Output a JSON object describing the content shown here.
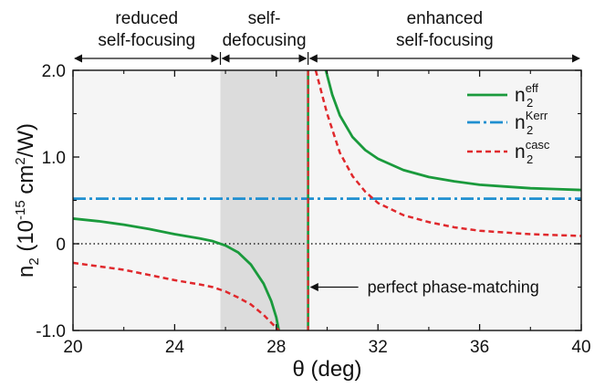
{
  "chart_data": {
    "type": "line",
    "xlabel": "θ (deg)",
    "ylabel_parts": [
      "n",
      "2",
      " (10",
      "-15",
      " cm",
      "2",
      "/W)"
    ],
    "xlim": [
      20,
      40
    ],
    "ylim": [
      -1.0,
      2.0
    ],
    "x_ticks": [
      20,
      24,
      28,
      32,
      36,
      40
    ],
    "x_tick_labels": [
      "20",
      "24",
      "28",
      "32",
      "36",
      "40"
    ],
    "y_ticks": [
      -1.0,
      0,
      1.0,
      2.0
    ],
    "y_tick_labels": [
      "-1.0",
      "0",
      "1.0",
      "2.0"
    ],
    "grid": false,
    "colors": {
      "eff": "#1a9a3c",
      "kerr": "#1f8fd0",
      "casc": "#e0282c",
      "plot_bg": "#f5f5f5",
      "shade": "#dcdcdc"
    },
    "shaded_region": {
      "x": [
        25.8,
        29.25
      ]
    },
    "phase_matching_x": 29.25,
    "regions": [
      {
        "x_range": [
          20,
          25.8
        ],
        "label_lines": [
          "reduced",
          "self-focusing"
        ]
      },
      {
        "x_range": [
          25.8,
          29.25
        ],
        "label_lines": [
          "self-",
          "defocusing"
        ]
      },
      {
        "x_range": [
          29.25,
          40
        ],
        "label_lines": [
          "enhanced",
          "self-focusing"
        ]
      }
    ],
    "series": [
      {
        "id": "eff",
        "legend_base": "n",
        "legend_sub": "2",
        "legend_sup": "eff",
        "style": "solid",
        "branches": [
          {
            "x": [
              20,
              21,
              22,
              23,
              24,
              25,
              25.5,
              26,
              26.5,
              27,
              27.5,
              27.8,
              28,
              28.1
            ],
            "y": [
              0.29,
              0.26,
              0.22,
              0.17,
              0.11,
              0.06,
              0.03,
              -0.02,
              -0.1,
              -0.24,
              -0.46,
              -0.66,
              -0.85,
              -1.0
            ]
          },
          {
            "x": [
              29.95,
              30.2,
              30.5,
              31,
              31.5,
              32,
              33,
              34,
              35,
              36,
              37,
              38,
              39,
              40
            ],
            "y": [
              2.0,
              1.72,
              1.48,
              1.23,
              1.08,
              0.98,
              0.85,
              0.77,
              0.72,
              0.68,
              0.66,
              0.64,
              0.63,
              0.62
            ]
          }
        ]
      },
      {
        "id": "kerr",
        "legend_base": "n",
        "legend_sub": "2",
        "legend_sup": "Kerr",
        "style": "dashdot",
        "branches": [
          {
            "x": [
              20,
              40
            ],
            "y": [
              0.52,
              0.52
            ]
          }
        ]
      },
      {
        "id": "casc",
        "legend_base": "n",
        "legend_sub": "2",
        "legend_sup": "casc",
        "style": "dashed",
        "branches": [
          {
            "x": [
              20,
              21,
              22,
              23,
              24,
              25,
              25.5,
              26,
              26.5,
              27,
              27.5,
              27.8,
              28.1
            ],
            "y": [
              -0.22,
              -0.26,
              -0.3,
              -0.36,
              -0.42,
              -0.47,
              -0.5,
              -0.55,
              -0.62,
              -0.7,
              -0.82,
              -0.91,
              -1.0
            ]
          },
          {
            "x": [
              29.55,
              29.8,
              30,
              30.5,
              31,
              31.5,
              32,
              33,
              34,
              35,
              36,
              37,
              38,
              39,
              40
            ],
            "y": [
              2.0,
              1.72,
              1.5,
              1.05,
              0.78,
              0.6,
              0.47,
              0.33,
              0.25,
              0.19,
              0.15,
              0.13,
              0.11,
              0.1,
              0.09
            ]
          }
        ]
      }
    ],
    "annotations": [
      {
        "text": "perfect phase-matching",
        "arrow_to_x": 29.25,
        "y": -0.5
      }
    ]
  }
}
